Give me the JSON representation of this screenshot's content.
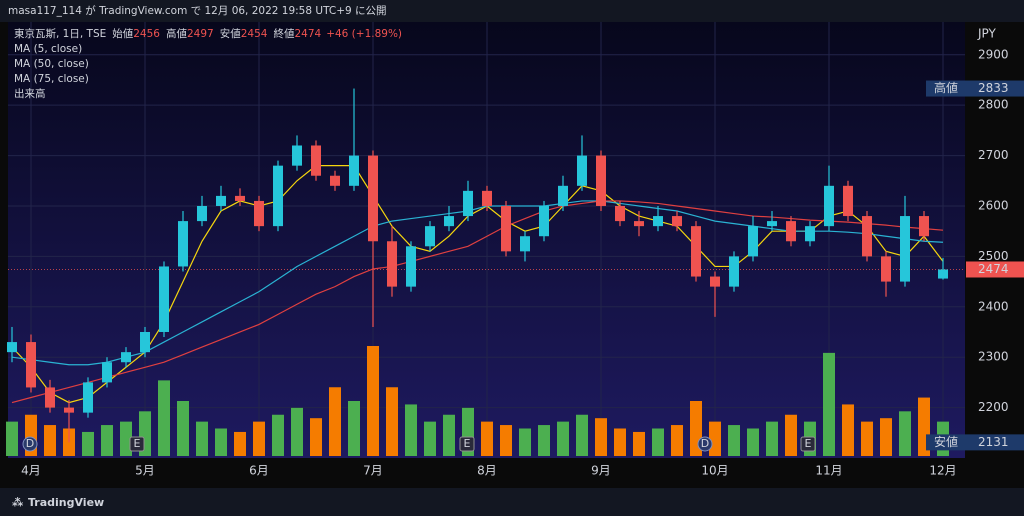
{
  "header": {
    "publisher": "masa117_114 が TradingView.com で 12月 06, 2022 19:58 UTC+9 に公開"
  },
  "footer": {
    "brand": "TradingView"
  },
  "chart_data": {
    "type": "candlestick",
    "symbol": "東京瓦斯, 1日, TSE",
    "ohlc_readout": [
      {
        "label": "始値",
        "value": 2456
      },
      {
        "label": "高値",
        "value": 2497
      },
      {
        "label": "安値",
        "value": 2454
      },
      {
        "label": "終値",
        "value": 2474
      }
    ],
    "change": "+46 (+1.89%)",
    "currency": "JPY",
    "categories": [
      null,
      "4月",
      null,
      null,
      null,
      null,
      null,
      "5月",
      null,
      null,
      null,
      null,
      null,
      "6月",
      null,
      null,
      null,
      null,
      null,
      "7月",
      null,
      null,
      null,
      null,
      null,
      "8月",
      null,
      null,
      null,
      null,
      null,
      "9月",
      null,
      null,
      null,
      null,
      null,
      "10月",
      null,
      null,
      null,
      null,
      null,
      "11月",
      null,
      null,
      null,
      null,
      null,
      "12月"
    ],
    "open": [
      2310,
      2330,
      2240,
      2200,
      2190,
      2250,
      2290,
      2310,
      2350,
      2480,
      2570,
      2600,
      2620,
      2610,
      2560,
      2680,
      2720,
      2660,
      2640,
      2700,
      2530,
      2440,
      2520,
      2560,
      2580,
      2630,
      2600,
      2510,
      2540,
      2600,
      2640,
      2700,
      2600,
      2570,
      2560,
      2580,
      2560,
      2460,
      2440,
      2500,
      2560,
      2570,
      2530,
      2560,
      2640,
      2580,
      2500,
      2450,
      2580,
      2456
    ],
    "high": [
      2360,
      2345,
      2255,
      2215,
      2260,
      2300,
      2320,
      2360,
      2490,
      2590,
      2620,
      2640,
      2635,
      2620,
      2690,
      2740,
      2730,
      2670,
      2833,
      2710,
      2560,
      2530,
      2570,
      2600,
      2650,
      2640,
      2610,
      2550,
      2610,
      2660,
      2740,
      2710,
      2610,
      2590,
      2600,
      2590,
      2570,
      2470,
      2510,
      2580,
      2590,
      2580,
      2570,
      2680,
      2650,
      2590,
      2510,
      2620,
      2590,
      2497
    ],
    "low": [
      2290,
      2230,
      2190,
      2131,
      2180,
      2240,
      2280,
      2300,
      2340,
      2470,
      2560,
      2590,
      2600,
      2550,
      2550,
      2670,
      2650,
      2630,
      2630,
      2360,
      2420,
      2430,
      2510,
      2550,
      2570,
      2590,
      2500,
      2490,
      2530,
      2590,
      2630,
      2590,
      2560,
      2540,
      2550,
      2550,
      2450,
      2380,
      2430,
      2490,
      2550,
      2520,
      2520,
      2550,
      2570,
      2490,
      2420,
      2440,
      2530,
      2454
    ],
    "close": [
      2330,
      2240,
      2200,
      2190,
      2250,
      2290,
      2310,
      2350,
      2480,
      2570,
      2600,
      2620,
      2610,
      2560,
      2680,
      2720,
      2660,
      2640,
      2700,
      2530,
      2440,
      2520,
      2560,
      2580,
      2630,
      2600,
      2510,
      2540,
      2600,
      2640,
      2700,
      2600,
      2570,
      2560,
      2580,
      2560,
      2460,
      2440,
      2500,
      2560,
      2570,
      2530,
      2560,
      2640,
      2580,
      2500,
      2450,
      2580,
      2540,
      2474
    ],
    "volume_name": "出来高",
    "volume": [
      1.0,
      1.2,
      0.9,
      0.8,
      0.7,
      0.9,
      1.0,
      1.3,
      2.2,
      1.6,
      1.0,
      0.8,
      0.7,
      1.0,
      1.2,
      1.4,
      1.1,
      2.0,
      1.6,
      3.2,
      2.0,
      1.5,
      1.0,
      1.2,
      1.4,
      1.0,
      0.9,
      0.8,
      0.9,
      1.0,
      1.2,
      1.1,
      0.8,
      0.7,
      0.8,
      0.9,
      1.6,
      1.0,
      0.9,
      0.8,
      1.0,
      1.2,
      1.0,
      3.0,
      1.5,
      1.0,
      1.1,
      1.3,
      1.7,
      1.0
    ],
    "up_color": "#26c6da",
    "down_color": "#ef5350",
    "volume_up_color": "#4caf50",
    "volume_down_color": "#f57c00",
    "series": [
      {
        "name": "MA (5, close)",
        "color": "#f5d60e",
        "values": [
          2320,
          2280,
          2230,
          2210,
          2220,
          2250,
          2280,
          2310,
          2370,
          2450,
          2530,
          2590,
          2610,
          2600,
          2610,
          2650,
          2680,
          2680,
          2680,
          2620,
          2560,
          2520,
          2510,
          2540,
          2580,
          2600,
          2570,
          2550,
          2560,
          2600,
          2640,
          2630,
          2600,
          2580,
          2570,
          2560,
          2520,
          2480,
          2480,
          2510,
          2550,
          2550,
          2550,
          2580,
          2590,
          2560,
          2510,
          2500,
          2540,
          2490
        ]
      },
      {
        "name": "MA (50, close)",
        "color": "#2ab3d3",
        "values": [
          2300,
          2295,
          2290,
          2285,
          2285,
          2290,
          2300,
          2310,
          2330,
          2350,
          2370,
          2390,
          2410,
          2430,
          2455,
          2480,
          2500,
          2520,
          2540,
          2560,
          2570,
          2575,
          2580,
          2585,
          2590,
          2600,
          2600,
          2600,
          2600,
          2605,
          2610,
          2610,
          2605,
          2600,
          2595,
          2590,
          2580,
          2570,
          2565,
          2560,
          2555,
          2550,
          2550,
          2550,
          2548,
          2545,
          2540,
          2535,
          2530,
          2528
        ]
      },
      {
        "name": "MA (75, close)",
        "color": "#e04040",
        "values": [
          2210,
          2220,
          2230,
          2240,
          2250,
          2260,
          2270,
          2280,
          2290,
          2305,
          2320,
          2335,
          2350,
          2365,
          2385,
          2405,
          2425,
          2440,
          2460,
          2475,
          2480,
          2490,
          2500,
          2510,
          2520,
          2540,
          2560,
          2575,
          2590,
          2600,
          2605,
          2610,
          2610,
          2608,
          2605,
          2600,
          2595,
          2590,
          2585,
          2580,
          2578,
          2575,
          2572,
          2570,
          2568,
          2565,
          2562,
          2558,
          2555,
          2552
        ]
      }
    ],
    "ylim": [
      2100,
      2965
    ],
    "yticks": [
      2200,
      2300,
      2400,
      2500,
      2600,
      2700,
      2800,
      2900
    ],
    "grid": true,
    "high_marker": {
      "label": "高値",
      "value": 2833
    },
    "low_marker": {
      "label": "安値",
      "value": 2131
    },
    "last_price": 2474,
    "events": [
      "D",
      "E",
      "E",
      "D",
      "E"
    ]
  }
}
